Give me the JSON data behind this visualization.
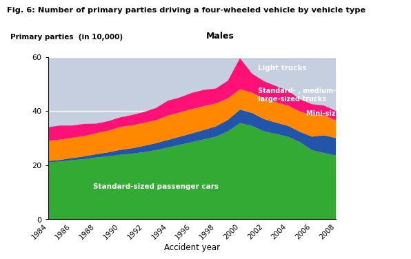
{
  "title": "Fig. 6: Number of primary parties driving a four-wheeled vehicle by vehicle type",
  "subtitle": "Males",
  "ylabel": "Primary parties  (in 10,000)",
  "xlabel": "Accident year",
  "years": [
    1984,
    1985,
    1986,
    1987,
    1988,
    1989,
    1990,
    1991,
    1992,
    1993,
    1994,
    1995,
    1996,
    1997,
    1998,
    1999,
    2000,
    2001,
    2002,
    2003,
    2004,
    2005,
    2006,
    2007,
    2008
  ],
  "standard_passenger": [
    21,
    21.3,
    21.8,
    22.2,
    22.8,
    23.2,
    23.8,
    24.2,
    24.8,
    25.5,
    26.5,
    27.5,
    28.5,
    29.5,
    30.5,
    32.5,
    35.5,
    34.5,
    32.5,
    31.5,
    30.5,
    28.5,
    25.5,
    24.5,
    23.5
  ],
  "mini_passenger": [
    0.5,
    0.6,
    0.8,
    1.0,
    1.2,
    1.5,
    1.8,
    2.0,
    2.3,
    2.6,
    2.8,
    3.0,
    3.2,
    3.5,
    3.8,
    4.2,
    5.0,
    4.8,
    4.5,
    4.2,
    4.0,
    3.8,
    5.0,
    6.5,
    6.5
  ],
  "std_medium_large_trucks": [
    7.5,
    7.5,
    7.5,
    7.5,
    7.8,
    8.0,
    8.5,
    8.5,
    8.5,
    8.5,
    9.0,
    9.0,
    9.0,
    8.8,
    8.5,
    8.0,
    7.5,
    7.5,
    7.5,
    7.5,
    7.5,
    7.5,
    8.0,
    7.5,
    6.5
  ],
  "light_trucks": [
    5.0,
    5.2,
    4.5,
    4.5,
    3.5,
    3.5,
    3.5,
    3.8,
    4.0,
    4.5,
    5.5,
    5.5,
    6.0,
    6.0,
    5.5,
    6.5,
    11.5,
    7.0,
    6.5,
    6.0,
    5.5,
    4.5,
    4.0,
    3.5,
    3.5
  ],
  "color_standard_passenger": "#33aa33",
  "color_mini_passenger": "#2255aa",
  "color_std_medium_large_trucks": "#ff8800",
  "color_light_trucks": "#ff1177",
  "color_background_chart": "#c5cfe0",
  "ylim": [
    0,
    60
  ],
  "yticks": [
    0,
    20,
    40,
    60
  ],
  "xtick_years": [
    1984,
    1986,
    1988,
    1990,
    1992,
    1994,
    1996,
    1998,
    2000,
    2002,
    2004,
    2006,
    2008
  ],
  "grid_color": "#ffffff",
  "label_standard_passenger": "Standard-sized passenger cars",
  "label_mini_passenger": "Mini-sized passenger cars",
  "label_std_medium_large_trucks": "Standard- , medium- and\nlarge-sized trucks",
  "label_light_trucks": "Light trucks"
}
